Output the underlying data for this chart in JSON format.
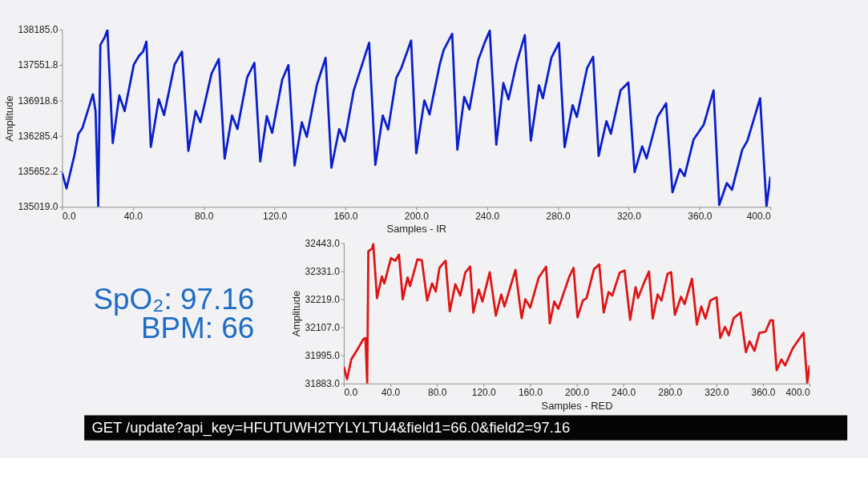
{
  "chart_data": [
    {
      "type": "line",
      "xlabel": "Samples - IR",
      "ylabel": "Amplitude",
      "xlim": [
        0,
        400
      ],
      "xticks": [
        {
          "value": 0,
          "label": "0.0"
        },
        {
          "value": 40,
          "label": "40.0"
        },
        {
          "value": 80,
          "label": "80.0"
        },
        {
          "value": 120,
          "label": "120.0"
        },
        {
          "value": 160,
          "label": "160.0"
        },
        {
          "value": 200,
          "label": "200.0"
        },
        {
          "value": 240,
          "label": "240.0"
        },
        {
          "value": 280,
          "label": "280.0"
        },
        {
          "value": 320,
          "label": "320.0"
        },
        {
          "value": 360,
          "label": "360.0"
        },
        {
          "value": 400,
          "label": "400.0"
        }
      ],
      "ylim": [
        135019,
        138185
      ],
      "yticks": [
        {
          "value": 135019,
          "label": "135019.0"
        },
        {
          "value": 135652.2,
          "label": "135652.2"
        },
        {
          "value": 136285.4,
          "label": "136285.4"
        },
        {
          "value": 136918.6,
          "label": "136918.6"
        },
        {
          "value": 137551.8,
          "label": "137551.8"
        },
        {
          "value": 138185,
          "label": "138185.0"
        }
      ],
      "series": [
        {
          "color": "#0a1ecc",
          "x": [
            0,
            2.5,
            7,
            9.2,
            11.5,
            17.4,
            18.9,
            20.4,
            21.6,
            24.1,
            25.6,
            28.6,
            32.3,
            35.3,
            40.5,
            43.5,
            45.7,
            47.6,
            50.1,
            54.6,
            57.6,
            63.5,
            67.7,
            71.3,
            75.4,
            78.1,
            84.4,
            88.5,
            91.8,
            96,
            99,
            104.5,
            108.6,
            111.9,
            115.6,
            118.6,
            124.3,
            127.8,
            131.3,
            135.4,
            138.2,
            143.9,
            148.8,
            152.1,
            156.5,
            159.5,
            164.7,
            173.4,
            176.9,
            181.1,
            184.1,
            188.7,
            191.6,
            197.1,
            200,
            204.6,
            207.5,
            213.3,
            215.5,
            220.3,
            223.2,
            227.1,
            230,
            235,
            238.6,
            241.5,
            245.2,
            249.2,
            252.1,
            256.7,
            261.3,
            264.7,
            269.3,
            271.5,
            276.3,
            280.6,
            283.8,
            288.3,
            290.7,
            296.5,
            299.9,
            303,
            307.4,
            309.9,
            315.4,
            319.8,
            323.3,
            327.6,
            330.1,
            336.3,
            341.1,
            344.7,
            348.9,
            351.5,
            356.6,
            362.4,
            367.9,
            371.1,
            375.4,
            378.3,
            384.1,
            387,
            394.2,
            397.8,
            400
          ],
          "values": [
            135630,
            135350,
            135950,
            136320,
            136430,
            137030,
            136730,
            135030,
            137910,
            138050,
            138180,
            136160,
            137010,
            136730,
            137560,
            137720,
            137790,
            137970,
            136090,
            136940,
            136660,
            137560,
            137790,
            136020,
            136730,
            136530,
            137400,
            137660,
            135880,
            136650,
            136410,
            137330,
            137590,
            135830,
            136640,
            136340,
            137290,
            137550,
            135760,
            136530,
            136270,
            137200,
            137680,
            135720,
            136410,
            136190,
            137100,
            137950,
            135770,
            136650,
            136400,
            137320,
            137500,
            137990,
            135975,
            136920,
            136670,
            137570,
            137820,
            138110,
            136040,
            136985,
            136760,
            137640,
            137950,
            138165,
            136130,
            137230,
            136940,
            137590,
            138085,
            136200,
            137190,
            136960,
            137680,
            137950,
            136085,
            136835,
            136625,
            137500,
            137700,
            135930,
            136550,
            136325,
            137100,
            137240,
            135640,
            136100,
            135885,
            136625,
            136870,
            135280,
            135695,
            135570,
            136220,
            136490,
            137100,
            135055,
            135445,
            135325,
            136040,
            136200,
            136960,
            135030,
            135560
          ]
        }
      ]
    },
    {
      "type": "other",
      "annotations": [
        "SpO₂: 97.16",
        "BPM: 66"
      ]
    },
    {
      "type": "line",
      "xlabel": "Samples - RED",
      "ylabel": "Amplitude",
      "xlim": [
        0,
        400
      ],
      "xticks": [
        {
          "value": 0,
          "label": "0.0"
        },
        {
          "value": 40,
          "label": "40.0"
        },
        {
          "value": 80,
          "label": "80.0"
        },
        {
          "value": 120,
          "label": "120.0"
        },
        {
          "value": 160,
          "label": "160.0"
        },
        {
          "value": 200,
          "label": "200.0"
        },
        {
          "value": 240,
          "label": "240.0"
        },
        {
          "value": 280,
          "label": "280.0"
        },
        {
          "value": 320,
          "label": "320.0"
        },
        {
          "value": 360,
          "label": "360.0"
        },
        {
          "value": 400,
          "label": "400.0"
        }
      ],
      "ylim": [
        31883,
        32443
      ],
      "yticks": [
        {
          "value": 31883,
          "label": "31883.0"
        },
        {
          "value": 31995,
          "label": "31995.0"
        },
        {
          "value": 32107,
          "label": "32107.0"
        },
        {
          "value": 32219,
          "label": "32219.0"
        },
        {
          "value": 32331,
          "label": "32331.0"
        },
        {
          "value": 32443,
          "label": "32443.0"
        }
      ],
      "series": [
        {
          "color": "#e01414",
          "x": [
            0,
            2.8,
            6.4,
            11.6,
            16.9,
            18.6,
            20.1,
            21.1,
            24.3,
            25.3,
            28.5,
            32.7,
            34.8,
            40.5,
            44.3,
            47.4,
            50.6,
            54.8,
            56.9,
            63.2,
            67,
            71.6,
            75.8,
            79,
            82.1,
            87.4,
            91,
            95.8,
            100,
            104.3,
            108.5,
            111.2,
            115.9,
            119,
            125.3,
            130.6,
            135.2,
            138,
            147.4,
            152.7,
            155.9,
            160.1,
            167.4,
            173.7,
            176.9,
            180.7,
            184.2,
            193.7,
            197.3,
            200.7,
            205.3,
            208.5,
            214.8,
            219.4,
            223.2,
            227.4,
            230.6,
            236.9,
            241.1,
            245.9,
            250.6,
            252.7,
            257.9,
            262.1,
            265.3,
            269.5,
            272.8,
            278,
            281.1,
            284.3,
            289.6,
            292.7,
            299,
            303.2,
            307,
            310.6,
            314.8,
            320.1,
            323.3,
            327.4,
            330.6,
            334.8,
            340.7,
            345.3,
            348.5,
            352.7,
            356.9,
            362.2,
            366.3,
            368.5,
            371.7,
            375.8,
            379,
            385.4,
            389.6,
            394.8,
            398,
            400
          ],
          "values": [
            31950,
            31900,
            31979,
            32018,
            32061,
            32064,
            31885,
            32411,
            32421,
            32440,
            32224,
            32310,
            32282,
            32383,
            32373,
            32397,
            32219,
            32306,
            32272,
            32378,
            32375,
            32214,
            32282,
            32250,
            32344,
            32373,
            32171,
            32279,
            32234,
            32325,
            32349,
            32166,
            32258,
            32210,
            32327,
            32154,
            32238,
            32190,
            32336,
            32144,
            32219,
            32186,
            32306,
            32349,
            32123,
            32210,
            32181,
            32310,
            32344,
            32147,
            32214,
            32224,
            32339,
            32358,
            32166,
            32248,
            32234,
            32325,
            32334,
            32137,
            32267,
            32224,
            32286,
            32330,
            32142,
            32238,
            32214,
            32320,
            32327,
            32157,
            32229,
            32200,
            32301,
            32118,
            32190,
            32142,
            32214,
            32227,
            32065,
            32109,
            32075,
            32144,
            32166,
            32008,
            32051,
            32013,
            32085,
            32090,
            32135,
            32135,
            31936,
            31979,
            31955,
            32022,
            32051,
            32085,
            31885,
            31955
          ]
        }
      ]
    },
    {
      "type": "other",
      "annotations": [
        "GET /update?api_key=HFUTUWH2TYLYLTU4&field1=66.0&field2=97.16"
      ]
    }
  ]
}
